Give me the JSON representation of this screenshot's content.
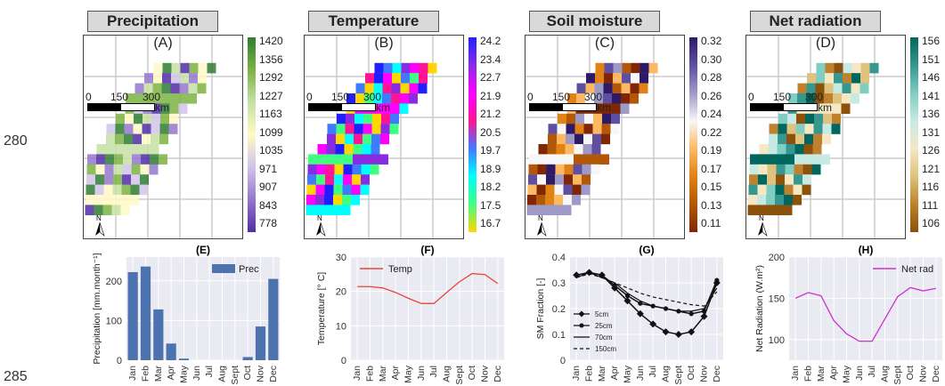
{
  "line_numbers": [
    "280",
    "285"
  ],
  "maps": [
    {
      "title": "Precipitation",
      "letter": "(A)",
      "legend_ticks": [
        "1420",
        "1356",
        "1292",
        "1227",
        "1163",
        "1099",
        "1035",
        "971",
        "907",
        "843",
        "778"
      ],
      "colors": [
        "#2e7d32",
        "#7cb342",
        "#c5e1a5",
        "#fff9c4",
        "#d1c4e9",
        "#9575cd",
        "#512da8"
      ]
    },
    {
      "title": "Temperature",
      "letter": "(B)",
      "legend_ticks": [
        "24.2",
        "23.4",
        "22.7",
        "21.9",
        "21.2",
        "20.5",
        "19.7",
        "18.9",
        "18.2",
        "17.5",
        "16.7"
      ],
      "colors": [
        "#2020ff",
        "#8a2be2",
        "#ff00ff",
        "#ff1493",
        "#3e7bff",
        "#00ffff",
        "#40ff80",
        "#ffd700"
      ]
    },
    {
      "title": "Soil moisture",
      "letter": "(C)",
      "legend_ticks": [
        "0.32",
        "0.30",
        "0.28",
        "0.26",
        "0.24",
        "0.22",
        "0.19",
        "0.17",
        "0.15",
        "0.13",
        "0.11"
      ],
      "colors": [
        "#2d1b69",
        "#5e4fa2",
        "#9e9ac8",
        "#f7f7f7",
        "#fdb863",
        "#e08214",
        "#b35806",
        "#7f2704"
      ]
    },
    {
      "title": "Net radiation",
      "letter": "(D)",
      "legend_ticks": [
        "156",
        "151",
        "146",
        "141",
        "136",
        "131",
        "126",
        "121",
        "116",
        "111",
        "106"
      ],
      "colors": [
        "#01665e",
        "#35978f",
        "#80cdc1",
        "#c7eae5",
        "#f6e8c3",
        "#dfc27d",
        "#bf812d",
        "#8c510a"
      ]
    }
  ],
  "scale": {
    "ticks": [
      "0",
      "150",
      "300"
    ],
    "unit": "km"
  },
  "north_label": "N",
  "chart_data": [
    {
      "type": "bar",
      "panel": "(E)",
      "categories": [
        "Jan",
        "Feb",
        "Mar",
        "Apr",
        "May",
        "Jun",
        "Jul",
        "Aug",
        "Sept",
        "Oct",
        "Nov",
        "Dec"
      ],
      "series": [
        {
          "name": "Prec",
          "values": [
            222,
            236,
            128,
            42,
            4,
            0,
            0,
            0,
            0,
            8,
            85,
            205
          ]
        }
      ],
      "ylabel": "Precipitation [mm.month⁻¹]",
      "ylim": [
        0,
        260
      ],
      "yticks": [
        0,
        100,
        200
      ],
      "legend": "top-right",
      "color": "#4c72b0"
    },
    {
      "type": "line",
      "panel": "(F)",
      "categories": [
        "Jan",
        "Feb",
        "Mar",
        "Apr",
        "May",
        "Jun",
        "Jul",
        "Aug",
        "Sept",
        "Oct",
        "Nov",
        "Dec"
      ],
      "series": [
        {
          "name": "Temp",
          "values": [
            21.4,
            21.4,
            21.0,
            19.7,
            18.0,
            16.5,
            16.5,
            19.7,
            22.8,
            25.2,
            24.9,
            22.3
          ]
        }
      ],
      "ylabel": "Temperature [° C]",
      "ylim": [
        0,
        30
      ],
      "yticks": [
        0,
        10,
        20,
        30
      ],
      "legend": "top-left",
      "color": "#e8453c"
    },
    {
      "type": "line",
      "panel": "(G)",
      "categories": [
        "Jan",
        "Feb",
        "Mar",
        "Apr",
        "May",
        "Jun",
        "Jul",
        "Aug",
        "Sept",
        "Oct",
        "Nov",
        "Dec"
      ],
      "series": [
        {
          "name": "5cm",
          "values": [
            0.33,
            0.34,
            0.33,
            0.28,
            0.23,
            0.18,
            0.14,
            0.11,
            0.1,
            0.11,
            0.17,
            0.3
          ]
        },
        {
          "name": "25cm",
          "values": [
            0.33,
            0.34,
            0.33,
            0.29,
            0.25,
            0.22,
            0.21,
            0.2,
            0.19,
            0.18,
            0.19,
            0.31
          ]
        },
        {
          "name": "70cm",
          "values": [
            0.32,
            0.34,
            0.32,
            0.3,
            0.26,
            0.23,
            0.21,
            0.2,
            0.19,
            0.19,
            0.2,
            0.28
          ]
        },
        {
          "name": "150cm",
          "values": [
            0.32,
            0.335,
            0.32,
            0.3,
            0.28,
            0.26,
            0.245,
            0.235,
            0.225,
            0.215,
            0.21,
            0.265
          ]
        }
      ],
      "ylabel": "SM Fraction [-]",
      "ylim": [
        0.0,
        0.4
      ],
      "yticks": [
        0.0,
        0.1,
        0.2,
        0.3,
        0.4
      ],
      "legend": "bottom-left",
      "color": "#111111"
    },
    {
      "type": "line",
      "panel": "(H)",
      "categories": [
        "Jan",
        "Feb",
        "Mar",
        "Apr",
        "May",
        "Jun",
        "Jul",
        "Aug",
        "Sept",
        "Oct",
        "Nov",
        "Dec"
      ],
      "series": [
        {
          "name": "Net rad",
          "values": [
            150,
            157,
            153,
            123,
            107,
            98,
            98,
            125,
            152,
            163,
            159,
            162
          ]
        }
      ],
      "ylabel": "Net Radiation (W.m²)",
      "ylim": [
        75,
        200
      ],
      "yticks": [
        100,
        150,
        200
      ],
      "legend": "top-right",
      "color": "#cc33cc"
    }
  ]
}
